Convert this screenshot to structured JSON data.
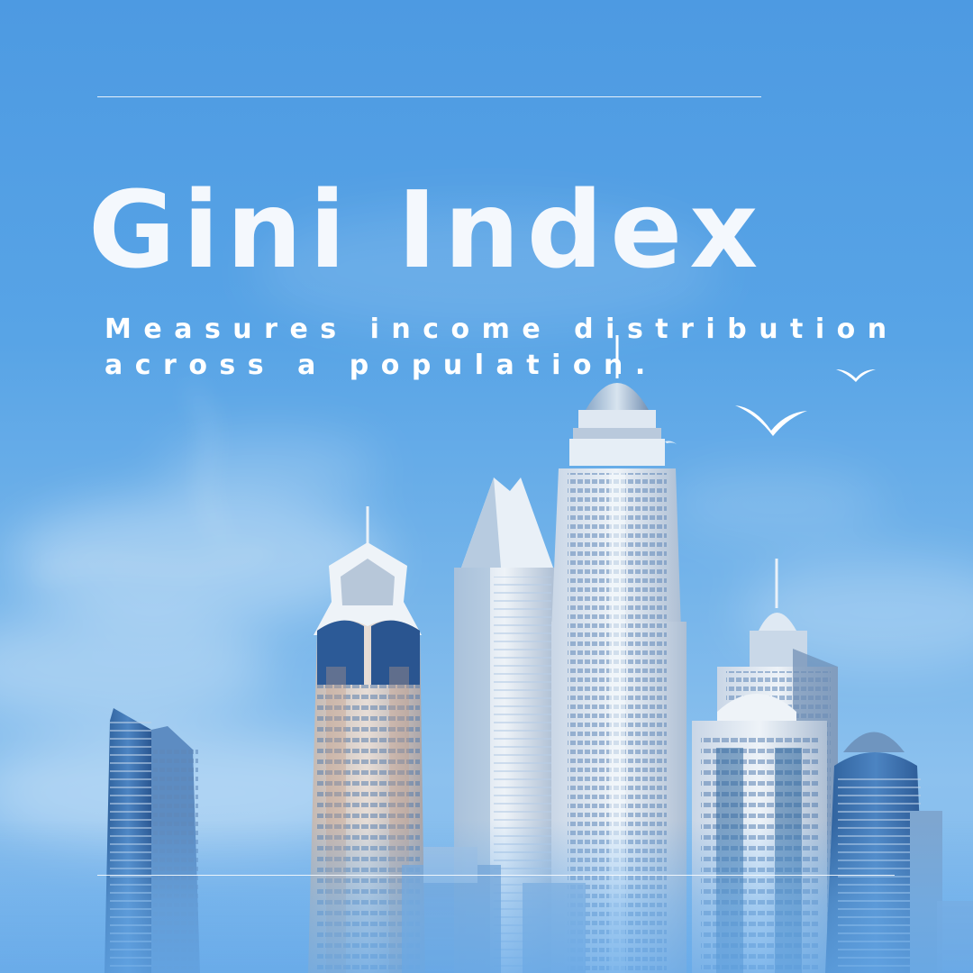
{
  "poster": {
    "title": "Gini Index",
    "subtitle_line1": "Measures income distribution",
    "subtitle_line2": "across a population."
  },
  "colors": {
    "sky_top": "#4d9ae2",
    "sky_bottom": "#8cc1ee",
    "text": "#ffffff"
  }
}
